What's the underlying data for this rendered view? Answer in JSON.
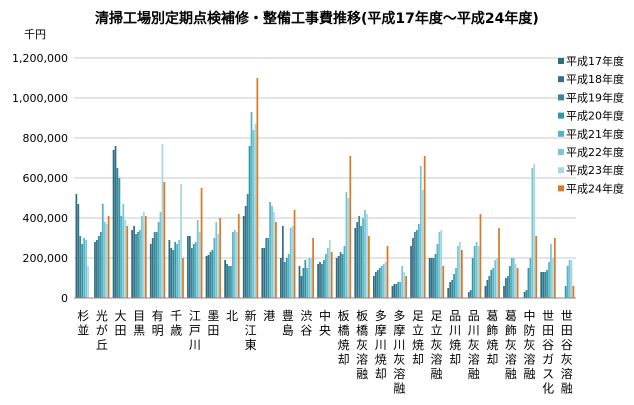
{
  "chart_data": {
    "type": "bar",
    "title": "清掃工場別定期点検補修・整備工事費推移(平成17年度～平成24年度)",
    "ylabel": "千円",
    "xlabel": "",
    "ylim": [
      0,
      1200000
    ],
    "yticks": [
      0,
      200000,
      400000,
      600000,
      800000,
      1000000,
      1200000
    ],
    "ytick_labels": [
      "0",
      "200,000",
      "400,000",
      "600,000",
      "800,000",
      "1,000,000",
      "1,200,000"
    ],
    "grid": true,
    "legend_position": "right",
    "categories": [
      "杉並",
      "光が丘",
      "大田",
      "目黒",
      "有明",
      "千歳",
      "江戸川",
      "墨田",
      "北",
      "新江東",
      "港",
      "豊島",
      "渋谷",
      "中央",
      "板橋焼却",
      "板橋灰溶融",
      "多摩川焼却",
      "多摩川灰溶融",
      "足立焼却",
      "足立灰溶融",
      "品川焼却",
      "品川灰溶融",
      "葛飾焼却",
      "葛飾灰溶融",
      "中防灰溶融",
      "世田谷ガス化",
      "世田谷灰溶融"
    ],
    "series": [
      {
        "name": "平成17年度",
        "color": "#2f6f7a",
        "values": [
          520000,
          280000,
          740000,
          340000,
          270000,
          290000,
          310000,
          210000,
          190000,
          410000,
          250000,
          200000,
          160000,
          170000,
          200000,
          350000,
          110000,
          60000,
          260000,
          200000,
          50000,
          0,
          60000,
          60000,
          0,
          130000,
          0
        ]
      },
      {
        "name": "平成18年度",
        "color": "#346f8f",
        "values": [
          470000,
          290000,
          760000,
          360000,
          300000,
          250000,
          310000,
          215000,
          170000,
          460000,
          250000,
          360000,
          110000,
          180000,
          210000,
          380000,
          130000,
          70000,
          300000,
          200000,
          80000,
          30000,
          90000,
          100000,
          30000,
          130000,
          0
        ]
      },
      {
        "name": "平成19年度",
        "color": "#3e8596",
        "values": [
          310000,
          310000,
          650000,
          320000,
          330000,
          240000,
          250000,
          230000,
          160000,
          520000,
          300000,
          180000,
          150000,
          170000,
          230000,
          410000,
          140000,
          70000,
          330000,
          200000,
          90000,
          40000,
          110000,
          110000,
          40000,
          130000,
          0
        ]
      },
      {
        "name": "平成20年度",
        "color": "#3398a5",
        "values": [
          270000,
          330000,
          600000,
          330000,
          330000,
          280000,
          270000,
          240000,
          160000,
          760000,
          300000,
          200000,
          190000,
          190000,
          220000,
          360000,
          150000,
          80000,
          340000,
          220000,
          120000,
          200000,
          140000,
          160000,
          150000,
          140000,
          60000
        ]
      },
      {
        "name": "平成21年度",
        "color": "#56b3c2",
        "values": [
          300000,
          470000,
          410000,
          340000,
          380000,
          270000,
          280000,
          300000,
          330000,
          930000,
          480000,
          220000,
          150000,
          220000,
          260000,
          400000,
          160000,
          80000,
          370000,
          270000,
          150000,
          260000,
          150000,
          200000,
          200000,
          180000,
          160000
        ]
      },
      {
        "name": "平成22年度",
        "color": "#7cc5d4",
        "values": [
          290000,
          380000,
          470000,
          410000,
          430000,
          290000,
          390000,
          380000,
          340000,
          840000,
          460000,
          350000,
          200000,
          250000,
          530000,
          440000,
          170000,
          160000,
          660000,
          330000,
          260000,
          280000,
          190000,
          200000,
          650000,
          270000,
          190000
        ]
      },
      {
        "name": "平成23年度",
        "color": "#a9d6e0",
        "values": [
          160000,
          370000,
          390000,
          430000,
          770000,
          570000,
          330000,
          320000,
          330000,
          870000,
          430000,
          360000,
          200000,
          290000,
          500000,
          420000,
          180000,
          130000,
          540000,
          340000,
          280000,
          260000,
          200000,
          170000,
          670000,
          200000,
          190000
        ]
      },
      {
        "name": "平成24年度",
        "color": "#d97a26",
        "values": [
          0,
          410000,
          360000,
          410000,
          580000,
          200000,
          550000,
          400000,
          420000,
          1100000,
          380000,
          440000,
          300000,
          230000,
          710000,
          310000,
          260000,
          110000,
          710000,
          160000,
          240000,
          420000,
          350000,
          150000,
          310000,
          300000,
          60000
        ]
      }
    ]
  }
}
